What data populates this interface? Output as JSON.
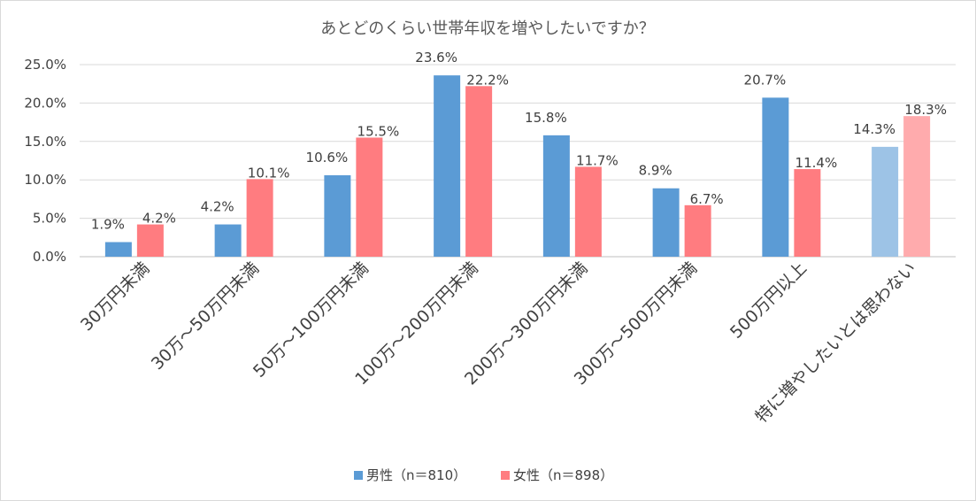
{
  "chart_data": {
    "type": "bar",
    "title": "あとどのくらい世帯年収を増やしたいですか？",
    "categories": [
      "30万円未満",
      "30万～50万円未満",
      "50万～100万円未満",
      "100万～200万円未満",
      "200万～300万円未満",
      "300万～500万円未満",
      "500万円以上",
      "特に増やしたいとは思わない"
    ],
    "series": [
      {
        "name": "男性（n＝810）",
        "values": [
          1.9,
          4.2,
          10.6,
          23.6,
          15.8,
          8.9,
          20.7,
          14.3
        ],
        "labels": [
          "1.9%",
          "4.2%",
          "10.6%",
          "23.6%",
          "15.8%",
          "8.9%",
          "20.7%",
          "14.3%"
        ],
        "color": "#5b9bd5",
        "last_color": "#9dc3e6"
      },
      {
        "name": "女性（n＝898）",
        "values": [
          4.2,
          10.1,
          15.5,
          22.2,
          11.7,
          6.7,
          11.4,
          18.3
        ],
        "labels": [
          "4.2%",
          "10.1%",
          "15.5%",
          "22.2%",
          "11.7%",
          "6.7%",
          "11.4%",
          "18.3%"
        ],
        "color": "#ff7c80",
        "last_color": "#ffabad"
      }
    ],
    "yticks": [
      "0.0%",
      "5.0%",
      "10.0%",
      "15.0%",
      "20.0%",
      "25.0%"
    ],
    "ylim": [
      0,
      25
    ],
    "grid": true,
    "legend": "bottom"
  }
}
